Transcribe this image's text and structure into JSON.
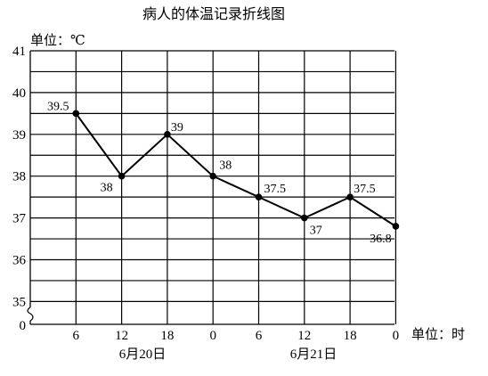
{
  "chart_data": {
    "type": "line",
    "title": "病人的体温记录折线图",
    "y_unit_label": "单位：℃",
    "x_unit_label": "单位：时",
    "y_ticks": [
      41,
      40,
      39,
      38,
      37,
      36,
      35,
      0
    ],
    "x_ticks": [
      "6",
      "12",
      "18",
      "0",
      "6",
      "12",
      "18",
      "0"
    ],
    "date_labels": [
      "6月20日",
      "6月21日"
    ],
    "ylim": [
      35,
      41
    ],
    "axis_break": true,
    "grid": true,
    "points": [
      {
        "x": "6",
        "y": 39.5,
        "label": "39.5"
      },
      {
        "x": "12",
        "y": 38,
        "label": "38"
      },
      {
        "x": "18",
        "y": 39,
        "label": "39"
      },
      {
        "x": "0",
        "y": 38,
        "label": "38"
      },
      {
        "x": "6",
        "y": 37.5,
        "label": "37.5"
      },
      {
        "x": "12",
        "y": 37,
        "label": "37"
      },
      {
        "x": "18",
        "y": 37.5,
        "label": "37.5"
      },
      {
        "x": "0",
        "y": 36.8,
        "label": "36.8"
      }
    ]
  }
}
